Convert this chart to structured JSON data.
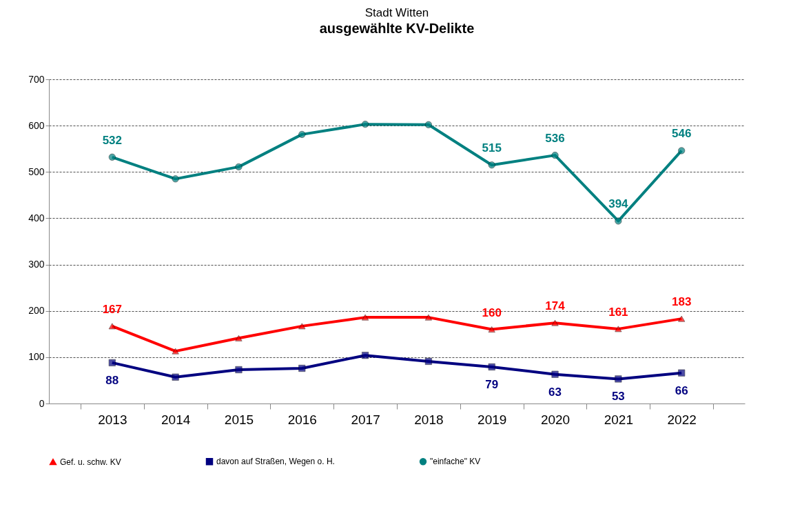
{
  "chart_data": {
    "type": "line",
    "title": "ausgewählte KV-Delikte",
    "subtitle": "Stadt Witten",
    "categories": [
      "2013",
      "2014",
      "2015",
      "2016",
      "2017",
      "2018",
      "2019",
      "2020",
      "2021",
      "2022"
    ],
    "series": [
      {
        "name": "Gef. u. schw. KV",
        "color": "#ff0000",
        "marker": "triangle",
        "values": [
          167,
          113,
          141,
          167,
          186,
          186,
          160,
          174,
          161,
          183
        ],
        "value_labels": [
          "167",
          null,
          null,
          null,
          null,
          null,
          "160",
          "174",
          "161",
          "183"
        ]
      },
      {
        "name": "davon auf Straßen, Wegen o. H.",
        "color": "#000080",
        "marker": "square",
        "values": [
          88,
          57,
          73,
          76,
          104,
          91,
          79,
          63,
          53,
          66
        ],
        "value_labels": [
          "88",
          null,
          null,
          null,
          null,
          null,
          "79",
          "63",
          "53",
          "66"
        ]
      },
      {
        "name": "\"einfache\" KV",
        "color": "#008080",
        "marker": "circle",
        "values": [
          532,
          485,
          511,
          581,
          603,
          602,
          515,
          536,
          394,
          546
        ],
        "value_labels": [
          "532",
          null,
          null,
          null,
          null,
          null,
          "515",
          "536",
          "394",
          "546"
        ]
      }
    ],
    "ylim": [
      0,
      700
    ],
    "yticks": [
      0,
      100,
      200,
      300,
      400,
      500,
      600,
      700
    ],
    "grid": "y",
    "legend": "bottom",
    "line_style": "solid"
  }
}
